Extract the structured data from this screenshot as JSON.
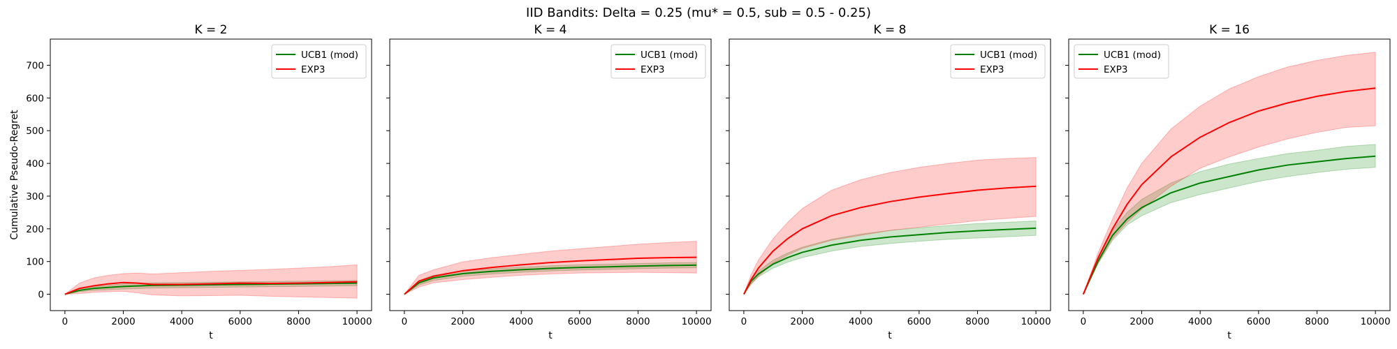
{
  "figure": {
    "title": "IID Bandits: Delta = 0.25 (mu* = 0.5, sub = 0.5 - 0.25)"
  },
  "chart_data": [
    {
      "type": "line",
      "title": "K = 2",
      "xlabel": "t",
      "ylabel": "Cumulative Pseudo-Regret",
      "xlim": [
        -500,
        10500
      ],
      "ylim": [
        -50,
        780
      ],
      "xticks": [
        0,
        2000,
        4000,
        6000,
        8000,
        10000
      ],
      "yticks": [
        0,
        100,
        200,
        300,
        400,
        500,
        600,
        700
      ],
      "legend_position": "upper right",
      "series": [
        {
          "name": "UCB1 (mod)",
          "color": "#008000",
          "band_color": "#008000",
          "x": [
            0,
            500,
            1000,
            2000,
            3000,
            4000,
            5000,
            6000,
            7000,
            8000,
            9000,
            10000
          ],
          "y": [
            0,
            12,
            18,
            24,
            27,
            28,
            29,
            30,
            31,
            32,
            33,
            34
          ],
          "lower": [
            0,
            8,
            12,
            16,
            19,
            20,
            21,
            22,
            23,
            24,
            25,
            26
          ],
          "upper": [
            0,
            16,
            24,
            32,
            35,
            36,
            37,
            38,
            39,
            40,
            41,
            42
          ]
        },
        {
          "name": "EXP3",
          "color": "#ff0000",
          "band_color": "#ff0000",
          "x": [
            0,
            500,
            1000,
            1500,
            2000,
            2500,
            3000,
            4000,
            5000,
            6000,
            7000,
            8000,
            9000,
            10000
          ],
          "y": [
            0,
            18,
            26,
            32,
            36,
            34,
            30,
            30,
            32,
            34,
            33,
            34,
            36,
            38
          ],
          "lower": [
            0,
            2,
            6,
            8,
            9,
            4,
            -2,
            -5,
            -4,
            -3,
            -6,
            -8,
            -10,
            -12
          ],
          "upper": [
            0,
            34,
            50,
            58,
            63,
            65,
            62,
            66,
            70,
            73,
            76,
            80,
            84,
            90
          ]
        }
      ]
    },
    {
      "type": "line",
      "title": "K = 4",
      "xlabel": "t",
      "ylabel": "",
      "xlim": [
        -500,
        10500
      ],
      "ylim": [
        -50,
        780
      ],
      "xticks": [
        0,
        2000,
        4000,
        6000,
        8000,
        10000
      ],
      "yticks": [
        0,
        100,
        200,
        300,
        400,
        500,
        600,
        700
      ],
      "legend_position": "upper right",
      "series": [
        {
          "name": "UCB1 (mod)",
          "color": "#008000",
          "band_color": "#008000",
          "x": [
            0,
            500,
            1000,
            2000,
            3000,
            4000,
            5000,
            6000,
            7000,
            8000,
            9000,
            10000
          ],
          "y": [
            0,
            35,
            50,
            63,
            70,
            75,
            79,
            82,
            84,
            86,
            88,
            89
          ],
          "lower": [
            0,
            28,
            42,
            55,
            62,
            67,
            71,
            74,
            76,
            78,
            80,
            81
          ],
          "upper": [
            0,
            42,
            58,
            71,
            78,
            83,
            87,
            90,
            92,
            94,
            96,
            97
          ]
        },
        {
          "name": "EXP3",
          "color": "#ff0000",
          "band_color": "#ff0000",
          "x": [
            0,
            500,
            1000,
            2000,
            3000,
            4000,
            5000,
            6000,
            7000,
            8000,
            9000,
            10000
          ],
          "y": [
            0,
            40,
            55,
            72,
            82,
            90,
            97,
            102,
            106,
            110,
            112,
            113
          ],
          "lower": [
            0,
            22,
            35,
            45,
            52,
            58,
            62,
            65,
            66,
            67,
            66,
            65
          ],
          "upper": [
            0,
            58,
            75,
            99,
            112,
            122,
            132,
            139,
            146,
            153,
            158,
            162
          ]
        }
      ]
    },
    {
      "type": "line",
      "title": "K = 8",
      "xlabel": "t",
      "ylabel": "",
      "xlim": [
        -500,
        10500
      ],
      "ylim": [
        -50,
        780
      ],
      "xticks": [
        0,
        2000,
        4000,
        6000,
        8000,
        10000
      ],
      "yticks": [
        0,
        100,
        200,
        300,
        400,
        500,
        600,
        700
      ],
      "legend_position": "upper right",
      "series": [
        {
          "name": "UCB1 (mod)",
          "color": "#008000",
          "band_color": "#008000",
          "x": [
            0,
            250,
            500,
            1000,
            1500,
            2000,
            3000,
            4000,
            5000,
            6000,
            7000,
            8000,
            9000,
            10000
          ],
          "y": [
            0,
            40,
            62,
            92,
            112,
            128,
            150,
            165,
            175,
            182,
            189,
            194,
            198,
            202
          ],
          "lower": [
            0,
            33,
            53,
            80,
            98,
            112,
            132,
            146,
            155,
            162,
            168,
            172,
            176,
            180
          ],
          "upper": [
            0,
            47,
            71,
            104,
            126,
            144,
            168,
            184,
            195,
            203,
            210,
            216,
            220,
            224
          ]
        },
        {
          "name": "EXP3",
          "color": "#ff0000",
          "band_color": "#ff0000",
          "x": [
            0,
            250,
            500,
            1000,
            1500,
            2000,
            3000,
            4000,
            5000,
            6000,
            7000,
            8000,
            9000,
            10000
          ],
          "y": [
            0,
            45,
            80,
            132,
            170,
            200,
            240,
            265,
            283,
            297,
            308,
            318,
            325,
            330
          ],
          "lower": [
            0,
            30,
            55,
            95,
            120,
            140,
            165,
            180,
            195,
            205,
            215,
            225,
            232,
            238
          ],
          "upper": [
            0,
            60,
            105,
            170,
            220,
            262,
            318,
            350,
            372,
            388,
            400,
            410,
            415,
            418
          ]
        }
      ]
    },
    {
      "type": "line",
      "title": "K = 16",
      "xlabel": "t",
      "ylabel": "",
      "xlim": [
        -500,
        10500
      ],
      "ylim": [
        -50,
        780
      ],
      "xticks": [
        0,
        2000,
        4000,
        6000,
        8000,
        10000
      ],
      "yticks": [
        0,
        100,
        200,
        300,
        400,
        500,
        600,
        700
      ],
      "legend_position": "upper left",
      "series": [
        {
          "name": "UCB1 (mod)",
          "color": "#008000",
          "band_color": "#008000",
          "x": [
            0,
            500,
            1000,
            1500,
            2000,
            3000,
            4000,
            5000,
            6000,
            7000,
            8000,
            9000,
            10000
          ],
          "y": [
            0,
            100,
            180,
            230,
            265,
            310,
            340,
            360,
            380,
            395,
            405,
            415,
            422
          ],
          "lower": [
            0,
            92,
            165,
            212,
            240,
            280,
            305,
            325,
            345,
            360,
            372,
            382,
            388
          ],
          "upper": [
            0,
            108,
            195,
            250,
            290,
            340,
            375,
            398,
            415,
            430,
            440,
            452,
            458
          ]
        },
        {
          "name": "EXP3",
          "color": "#ff0000",
          "band_color": "#ff0000",
          "x": [
            0,
            500,
            1000,
            1500,
            2000,
            3000,
            4000,
            5000,
            6000,
            7000,
            8000,
            9000,
            10000
          ],
          "y": [
            0,
            110,
            200,
            275,
            335,
            420,
            480,
            525,
            560,
            585,
            605,
            620,
            630
          ],
          "lower": [
            0,
            95,
            170,
            220,
            260,
            330,
            385,
            420,
            450,
            475,
            495,
            510,
            515
          ],
          "upper": [
            0,
            125,
            230,
            325,
            400,
            505,
            575,
            628,
            665,
            695,
            715,
            730,
            740
          ]
        }
      ]
    }
  ]
}
